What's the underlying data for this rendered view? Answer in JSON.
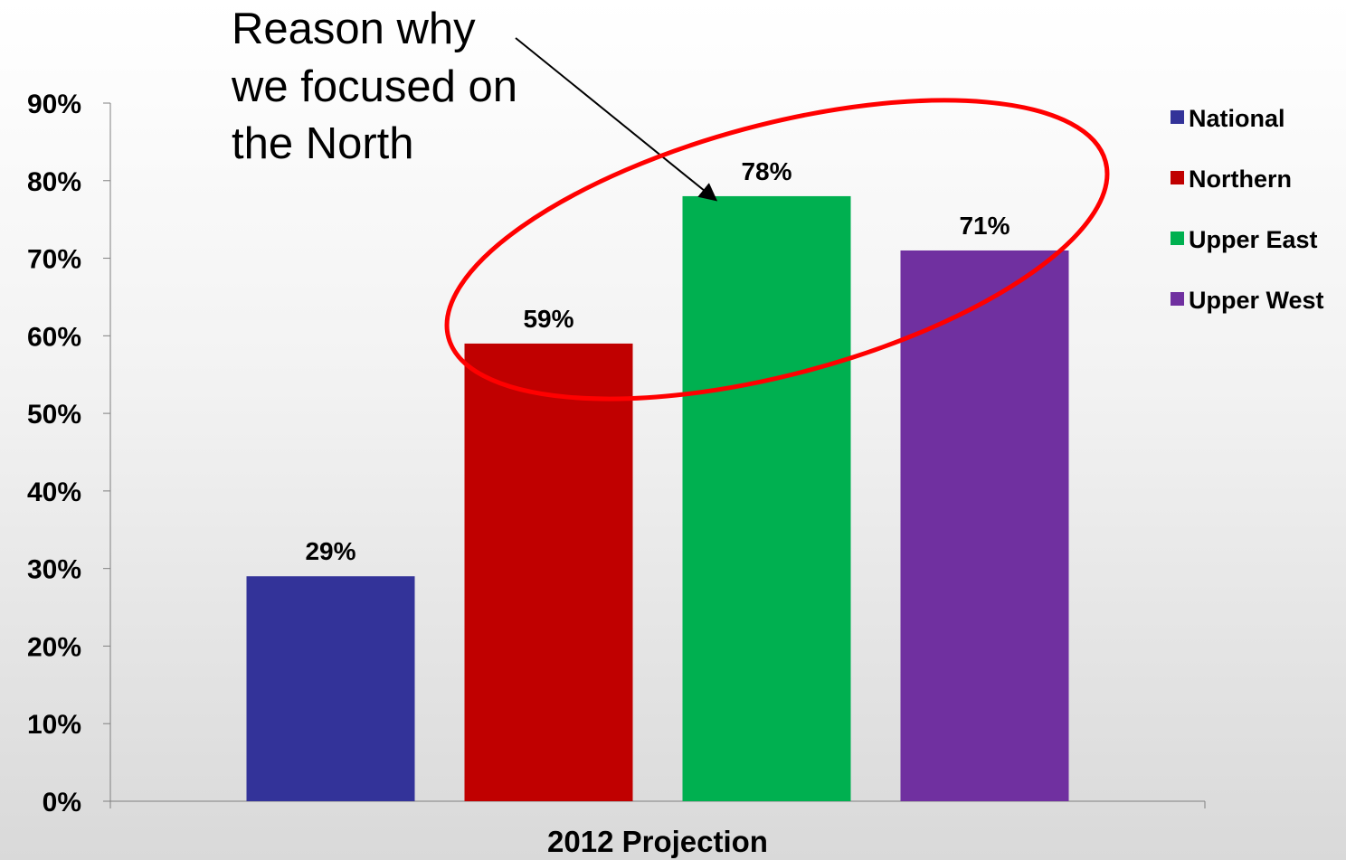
{
  "chart_data": {
    "type": "bar",
    "categories": [
      "2012 Projection"
    ],
    "series": [
      {
        "name": "National",
        "values": [
          29
        ],
        "color": "#333399"
      },
      {
        "name": "Northern",
        "values": [
          59
        ],
        "color": "#C00000"
      },
      {
        "name": "Upper East",
        "values": [
          78
        ],
        "color": "#00B050"
      },
      {
        "name": "Upper West",
        "values": [
          71
        ],
        "color": "#7030A0"
      }
    ],
    "data_labels": [
      "29%",
      "59%",
      "78%",
      "71%"
    ],
    "y_ticks": [
      "0%",
      "10%",
      "20%",
      "30%",
      "40%",
      "50%",
      "60%",
      "70%",
      "80%",
      "90%"
    ],
    "ylim": [
      0,
      90
    ],
    "title": "",
    "xlabel": "",
    "ylabel": "",
    "legend": "right",
    "grid": false,
    "annotation": {
      "lines": [
        "Reason why",
        "we focused on",
        "the North"
      ],
      "ellipse_color": "#FF0000"
    }
  }
}
